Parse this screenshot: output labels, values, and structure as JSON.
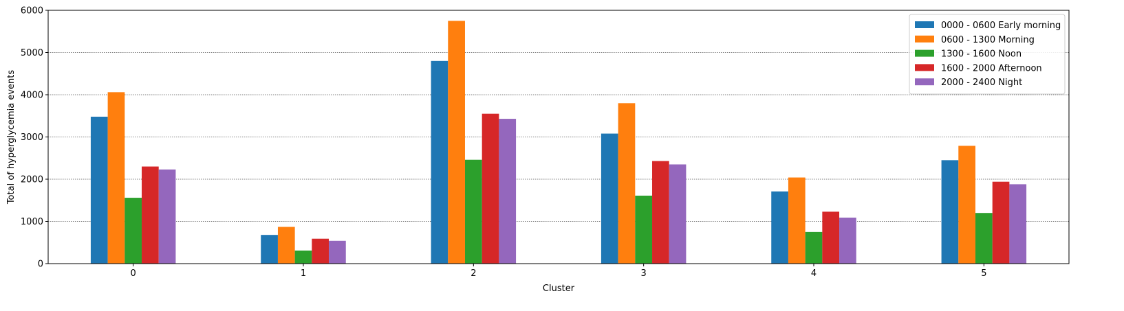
{
  "chart_data": {
    "type": "bar",
    "title": "",
    "xlabel": "Cluster",
    "ylabel": "Total of hyperglycemia events",
    "categories": [
      "0",
      "1",
      "2",
      "3",
      "4",
      "5"
    ],
    "ylim": [
      0,
      6000
    ],
    "yticks": [
      0,
      1000,
      2000,
      3000,
      4000,
      5000,
      6000
    ],
    "grid": "horizontal dotted",
    "legend_position": "top-right",
    "series": [
      {
        "name": "0000 - 0600 Early morning",
        "color": "#1f77b4",
        "values": [
          3480,
          680,
          4800,
          3080,
          1710,
          2450
        ]
      },
      {
        "name": "0600 - 1300 Morning",
        "color": "#ff7f0e",
        "values": [
          4060,
          870,
          5750,
          3800,
          2040,
          2790
        ]
      },
      {
        "name": "1300 - 1600 Noon",
        "color": "#2ca02c",
        "values": [
          1560,
          310,
          2460,
          1610,
          750,
          1200
        ]
      },
      {
        "name": "1600 - 2000 Afternoon",
        "color": "#d62728",
        "values": [
          2300,
          590,
          3550,
          2430,
          1230,
          1940
        ]
      },
      {
        "name": "2000 - 2400 Night",
        "color": "#9467bd",
        "values": [
          2230,
          540,
          3430,
          2350,
          1090,
          1880
        ]
      }
    ]
  }
}
